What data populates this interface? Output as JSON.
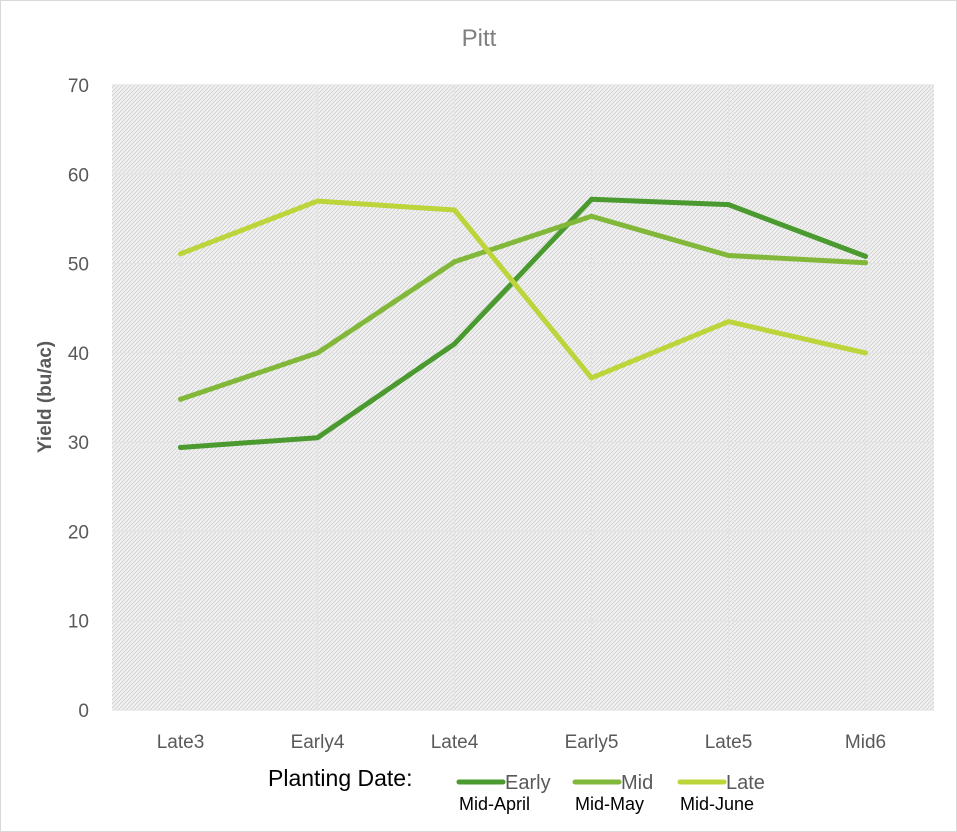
{
  "chart_data": {
    "type": "line",
    "title": "Pitt",
    "ylabel": "Yield (bu/ac)",
    "xlabel": "",
    "ylim": [
      0,
      70
    ],
    "yticks": [
      "0",
      "10",
      "20",
      "30",
      "40",
      "50",
      "60",
      "70"
    ],
    "grid": true,
    "legend_position": "bottom",
    "categories": [
      "Late3",
      "Early4",
      "Late4",
      "Early5",
      "Late5",
      "Mid6"
    ],
    "series": [
      {
        "name": "Early",
        "subtitle": "Mid-April",
        "color": "#4a9a2f",
        "values": [
          29.4,
          30.5,
          41.0,
          57.2,
          56.6,
          50.8
        ]
      },
      {
        "name": "Mid",
        "subtitle": "Mid-May",
        "color": "#82b83a",
        "values": [
          34.8,
          40.0,
          50.2,
          55.3,
          50.9,
          50.1
        ]
      },
      {
        "name": "Late",
        "subtitle": "Mid-June",
        "color": "#bdd43a",
        "values": [
          51.1,
          57.0,
          56.0,
          37.2,
          43.5,
          40.0
        ]
      }
    ],
    "legend_prefix": "Planting Date:"
  },
  "colors": {
    "plot_background": "#f2f2f2",
    "hatch": "#cfcfcf",
    "gridline": "#e3e3e3"
  }
}
